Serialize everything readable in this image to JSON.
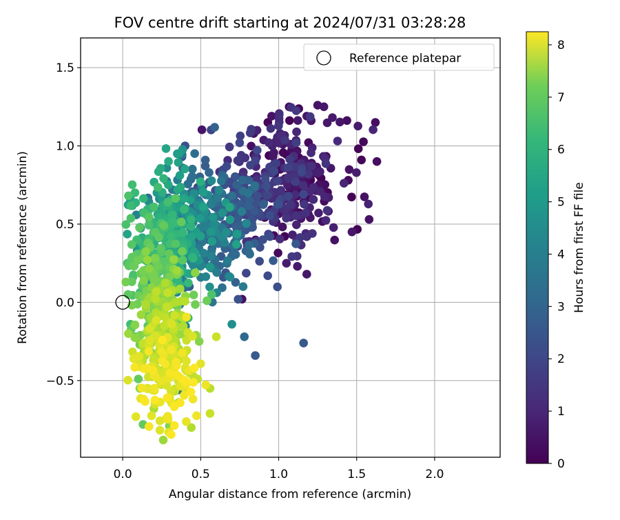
{
  "chart_data": {
    "type": "scatter",
    "title": "FOV centre drift starting at 2024/07/31 03:28:28",
    "xlabel": "Angular distance from reference (arcmin)",
    "ylabel": "Rotation from reference (arcmin)",
    "xlim": [
      -0.27,
      2.42
    ],
    "ylim": [
      -0.99,
      1.69
    ],
    "xticks": [
      0.0,
      0.5,
      1.0,
      1.5,
      2.0
    ],
    "xtick_labels": [
      "0.0",
      "0.5",
      "1.0",
      "1.5",
      "2.0"
    ],
    "yticks": [
      -0.5,
      0.0,
      0.5,
      1.0,
      1.5
    ],
    "ytick_labels": [
      "−0.5",
      "0.0",
      "0.5",
      "1.0",
      "1.5"
    ],
    "grid": true,
    "legend": {
      "position": "top-right",
      "entries": [
        {
          "label": "Reference platepar",
          "marker": "open-circle"
        }
      ]
    },
    "reference_point": {
      "x": 0.0,
      "y": 0.0
    },
    "colorbar": {
      "label": "Hours from first FF file",
      "colormap": "viridis",
      "range": [
        0,
        8.25
      ],
      "ticks": [
        0,
        1,
        2,
        3,
        4,
        5,
        6,
        7,
        8
      ],
      "tick_labels": [
        "0",
        "1",
        "2",
        "3",
        "4",
        "5",
        "6",
        "7",
        "8"
      ]
    },
    "point_count": 1400,
    "point_ranges": "hours 0-8.25; x from about 0.0 to 1.62 arcmin; y from about -0.88 to 1.26 arcmin",
    "points": [
      [
        1.25,
        1.26,
        0.4
      ],
      [
        1.29,
        1.25,
        0.5
      ],
      [
        1.18,
        1.19,
        0.5
      ],
      [
        1.62,
        1.15,
        0.3
      ],
      [
        1.63,
        0.9,
        0.3
      ],
      [
        1.58,
        0.53,
        0.4
      ],
      [
        1.47,
        0.45,
        0.5
      ],
      [
        1.05,
        0.25,
        0.6
      ],
      [
        1.12,
        0.23,
        0.6
      ],
      [
        1.18,
        0.18,
        0.5
      ],
      [
        0.75,
        1.02,
        1.8
      ],
      [
        0.38,
        0.93,
        2.2
      ],
      [
        0.4,
        1.0,
        2.1
      ],
      [
        1.16,
        -0.26,
        2.3
      ],
      [
        0.85,
        -0.34,
        2.3
      ],
      [
        0.78,
        -0.22,
        2.8
      ],
      [
        0.74,
        0.02,
        2.1
      ],
      [
        0.93,
        0.17,
        1.9
      ],
      [
        0.65,
        0.8,
        2.6
      ],
      [
        0.53,
        0.91,
        2.5
      ],
      [
        0.4,
        0.6,
        5.0
      ],
      [
        0.35,
        0.95,
        4.4
      ],
      [
        0.16,
        0.56,
        5.5
      ],
      [
        0.11,
        0.48,
        4.7
      ],
      [
        0.09,
        0.4,
        5.7
      ],
      [
        0.03,
        0.25,
        5.8
      ],
      [
        0.02,
        0.13,
        6.5
      ],
      [
        0.05,
        -0.14,
        5.7
      ],
      [
        0.08,
        -0.22,
        5.5
      ],
      [
        0.11,
        -0.27,
        6.4
      ],
      [
        0.07,
        -0.36,
        7.9
      ],
      [
        0.1,
        -0.49,
        6.3
      ],
      [
        0.11,
        -0.55,
        6.8
      ],
      [
        0.13,
        -0.78,
        6.2
      ],
      [
        0.2,
        -0.68,
        7.2
      ],
      [
        0.26,
        -0.88,
        7.0
      ],
      [
        0.3,
        -0.79,
        6.4
      ],
      [
        0.31,
        -0.79,
        6.7
      ],
      [
        0.44,
        -0.8,
        7.3
      ],
      [
        0.56,
        -0.71,
        7.6
      ],
      [
        0.56,
        -0.55,
        7.4
      ],
      [
        0.48,
        -0.49,
        7.5
      ],
      [
        0.6,
        -0.22,
        7.6
      ],
      [
        0.43,
        -0.45,
        7.4
      ],
      [
        0.4,
        -0.5,
        7.7
      ],
      [
        0.36,
        -0.56,
        3.3
      ],
      [
        0.36,
        -0.64,
        7.1
      ],
      [
        0.27,
        -0.44,
        7.3
      ],
      [
        0.42,
        -0.1,
        5.6
      ],
      [
        0.54,
        0.01,
        6.4
      ],
      [
        0.7,
        -0.14,
        4.1
      ],
      [
        0.57,
        0.05,
        5.9
      ],
      [
        0.49,
        -0.25,
        6.7
      ],
      [
        0.47,
        -0.21,
        6.9
      ],
      [
        0.22,
        0.01,
        4.0
      ]
    ]
  }
}
